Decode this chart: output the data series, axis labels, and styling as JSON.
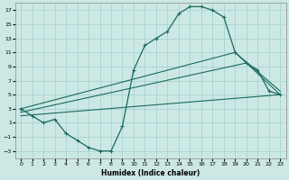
{
  "xlabel": "Humidex (Indice chaleur)",
  "background_color": "#cce8e5",
  "grid_color": "#a8d4cf",
  "line_color": "#1a6b5a",
  "xlim": [
    -0.5,
    23.5
  ],
  "ylim": [
    -4,
    18
  ],
  "xticks": [
    0,
    1,
    2,
    3,
    4,
    5,
    6,
    7,
    8,
    9,
    10,
    11,
    12,
    13,
    14,
    15,
    16,
    17,
    18,
    19,
    20,
    21,
    22,
    23
  ],
  "yticks": [
    -3,
    -1,
    1,
    3,
    5,
    7,
    9,
    11,
    13,
    15,
    17
  ],
  "main_curve": {
    "x": [
      0,
      1,
      2,
      3,
      4,
      5,
      6,
      7,
      8,
      9,
      10,
      11,
      12,
      13,
      14,
      15,
      16,
      17,
      18,
      19,
      20,
      21,
      22,
      23
    ],
    "y": [
      3,
      2,
      1,
      1.5,
      -0.5,
      -1.5,
      -2.5,
      -3,
      -3,
      0.5,
      8.5,
      12,
      13,
      14,
      16.5,
      17.5,
      17.5,
      17,
      16,
      11,
      9.5,
      8.5,
      5.5,
      5
    ]
  },
  "straight_lines": [
    {
      "x": [
        0,
        19,
        23
      ],
      "y": [
        3,
        11,
        5.5
      ]
    },
    {
      "x": [
        0,
        20,
        23
      ],
      "y": [
        2.5,
        9.5,
        5
      ]
    },
    {
      "x": [
        0,
        23
      ],
      "y": [
        2,
        5
      ]
    }
  ]
}
